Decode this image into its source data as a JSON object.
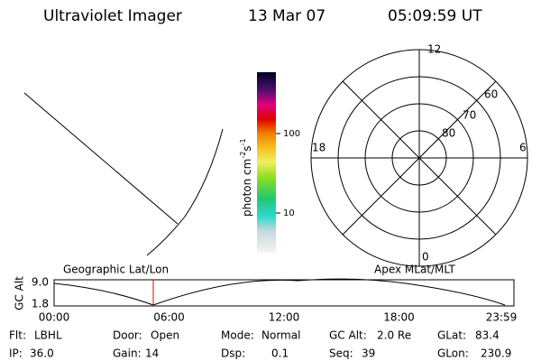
{
  "header": {
    "title": "Ultraviolet Imager",
    "date": "13 Mar 07",
    "time": "05:09:59 UT"
  },
  "colorbar": {
    "label": {
      "unit": "photon cm",
      "exp1": "-2",
      "unit2": "s",
      "exp2": "-1"
    },
    "ticks": [
      "100",
      "10"
    ]
  },
  "polar": {
    "mlt_labels": [
      "12",
      "6",
      "18",
      "0"
    ],
    "lat_labels": [
      "60",
      "70",
      "80"
    ]
  },
  "timeline": {
    "left_label": "Geographic Lat/Lon",
    "right_label": "Apex MLat/MLT",
    "y_label": "GC Alt",
    "yticks": [
      "9.0",
      "1.8"
    ],
    "xticks": [
      "00:00",
      "06:00",
      "12:00",
      "18:00",
      "23:59"
    ]
  },
  "info": {
    "rows": [
      [
        {
          "label": "Flt:",
          "value": "LBHL"
        },
        {
          "label": "Door:",
          "value": "Open"
        },
        {
          "label": "Mode:",
          "value": "Normal"
        },
        {
          "label": "GC Alt:",
          "value": "2.0 Re"
        },
        {
          "label": "GLat:",
          "value": "83.4"
        }
      ],
      [
        {
          "label": "IP:",
          "value": "36.0"
        },
        {
          "label": "Gain:",
          "value": "14"
        },
        {
          "label": "Dsp:",
          "value": "0.1"
        },
        {
          "label": "Seq:",
          "value": "39"
        },
        {
          "label": "GLon:",
          "value": "230.9"
        }
      ]
    ]
  }
}
